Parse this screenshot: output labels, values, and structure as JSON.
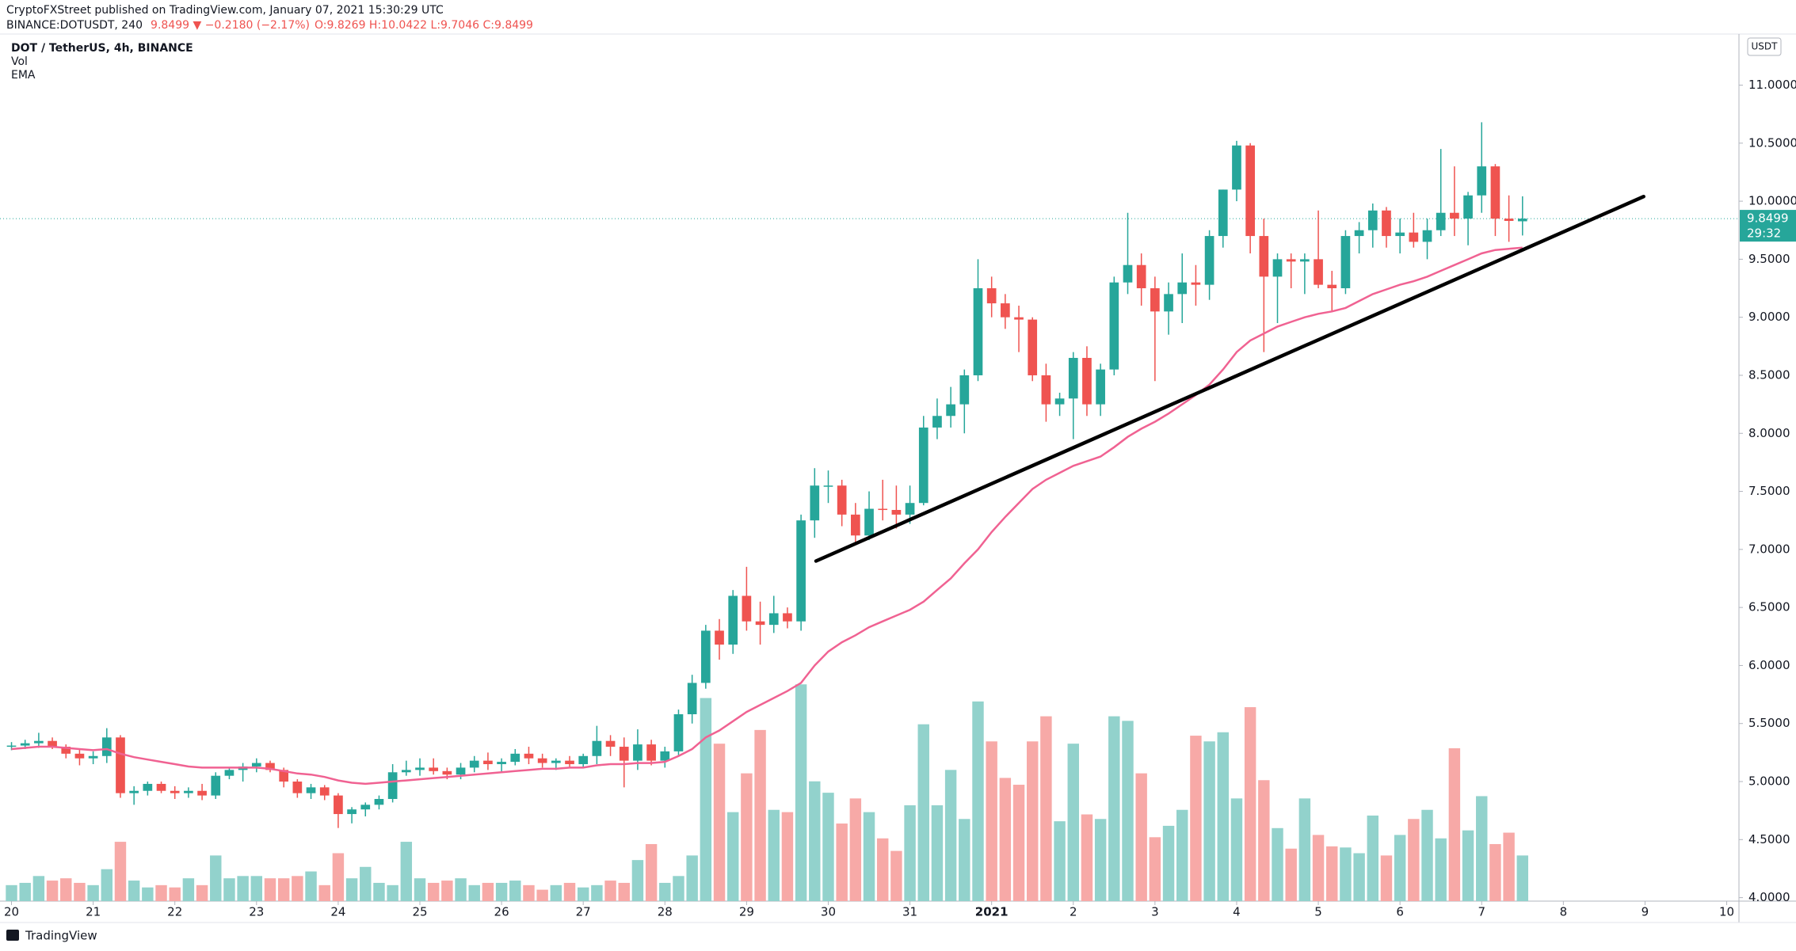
{
  "header": {
    "published": "CryptoFXStreet published on TradingView.com, January 07, 2021 15:30:29 UTC",
    "symbol": "BINANCE:DOTUSDT, 240",
    "change": "9.8499 ▼ −0.2180 (−2.17%)",
    "ohlc": "O:9.8269 H:10.0422 L:9.7046 C:9.8499"
  },
  "footer": {
    "brand": "TradingView"
  },
  "chart_data": {
    "type": "candlestick",
    "title": "DOT / TetherUS, 4h, BINANCE",
    "indicators": [
      "Vol",
      "EMA"
    ],
    "currency": "USDT",
    "countdown": "29:32",
    "up_color": "#26a69a",
    "down_color": "#ef5350",
    "volume_up_color": "#92d2cc",
    "volume_down_color": "#f7a9a7",
    "ema_color": "#f06292",
    "trendline_color": "#000000",
    "xlim": [
      -0.845,
      126.9
    ],
    "ylim": [
      3.97,
      11.44
    ],
    "grid": false,
    "xticks": [
      {
        "value": 0,
        "label": "20"
      },
      {
        "value": 6,
        "label": "21"
      },
      {
        "value": 12,
        "label": "22"
      },
      {
        "value": 18,
        "label": "23"
      },
      {
        "value": 24,
        "label": "24"
      },
      {
        "value": 30,
        "label": "25"
      },
      {
        "value": 36,
        "label": "26"
      },
      {
        "value": 42,
        "label": "27"
      },
      {
        "value": 48,
        "label": "28"
      },
      {
        "value": 54,
        "label": "29"
      },
      {
        "value": 60,
        "label": "30"
      },
      {
        "value": 66,
        "label": "31"
      },
      {
        "value": 72,
        "label": "2021"
      },
      {
        "value": 78,
        "label": "2"
      },
      {
        "value": 84,
        "label": "3"
      },
      {
        "value": 90,
        "label": "4"
      },
      {
        "value": 96,
        "label": "5"
      },
      {
        "value": 102,
        "label": "6"
      },
      {
        "value": 108,
        "label": "7"
      },
      {
        "value": 114,
        "label": "8"
      },
      {
        "value": 120,
        "label": "9"
      },
      {
        "value": 126,
        "label": "10"
      }
    ],
    "yticks": [
      {
        "value": 4,
        "label": "4.0000"
      },
      {
        "value": 4.5,
        "label": "4.5000"
      },
      {
        "value": 5,
        "label": "5.0000"
      },
      {
        "value": 5.5,
        "label": "5.5000"
      },
      {
        "value": 6,
        "label": "6.0000"
      },
      {
        "value": 6.5,
        "label": "6.5000"
      },
      {
        "value": 7,
        "label": "7.0000"
      },
      {
        "value": 7.5,
        "label": "7.5000"
      },
      {
        "value": 8,
        "label": "8.0000"
      },
      {
        "value": 8.5,
        "label": "8.5000"
      },
      {
        "value": 9,
        "label": "9.0000"
      },
      {
        "value": 9.5,
        "label": "9.5000"
      },
      {
        "value": 10,
        "label": "10.0000"
      },
      {
        "value": 10.5,
        "label": "10.5000"
      },
      {
        "value": 11,
        "label": "11.0000"
      }
    ],
    "candles": [
      [
        5.3,
        5.34,
        5.27,
        5.31
      ],
      [
        5.31,
        5.36,
        5.28,
        5.33
      ],
      [
        5.33,
        5.42,
        5.29,
        5.35
      ],
      [
        5.35,
        5.38,
        5.28,
        5.3
      ],
      [
        5.3,
        5.32,
        5.2,
        5.24
      ],
      [
        5.24,
        5.28,
        5.14,
        5.2
      ],
      [
        5.2,
        5.26,
        5.15,
        5.22
      ],
      [
        5.22,
        5.46,
        5.16,
        5.38
      ],
      [
        5.38,
        5.4,
        4.86,
        4.9
      ],
      [
        4.9,
        4.96,
        4.8,
        4.92
      ],
      [
        4.92,
        5.0,
        4.88,
        4.98
      ],
      [
        4.98,
        5.0,
        4.9,
        4.92
      ],
      [
        4.92,
        4.96,
        4.85,
        4.9
      ],
      [
        4.9,
        4.95,
        4.86,
        4.92
      ],
      [
        4.92,
        4.98,
        4.84,
        4.88
      ],
      [
        4.88,
        5.08,
        4.85,
        5.05
      ],
      [
        5.05,
        5.12,
        5.02,
        5.1
      ],
      [
        5.1,
        5.16,
        5.0,
        5.13
      ],
      [
        5.13,
        5.2,
        5.08,
        5.16
      ],
      [
        5.16,
        5.18,
        5.08,
        5.1
      ],
      [
        5.1,
        5.12,
        4.95,
        5.0
      ],
      [
        5.0,
        5.02,
        4.86,
        4.9
      ],
      [
        4.9,
        4.98,
        4.85,
        4.95
      ],
      [
        4.95,
        4.97,
        4.84,
        4.88
      ],
      [
        4.88,
        4.9,
        4.6,
        4.72
      ],
      [
        4.72,
        4.78,
        4.64,
        4.76
      ],
      [
        4.76,
        4.82,
        4.7,
        4.8
      ],
      [
        4.8,
        4.88,
        4.76,
        4.85
      ],
      [
        4.85,
        5.15,
        4.82,
        5.08
      ],
      [
        5.08,
        5.18,
        5.05,
        5.1
      ],
      [
        5.1,
        5.2,
        5.05,
        5.12
      ],
      [
        5.12,
        5.2,
        5.06,
        5.09
      ],
      [
        5.09,
        5.12,
        5.02,
        5.06
      ],
      [
        5.06,
        5.16,
        5.02,
        5.12
      ],
      [
        5.12,
        5.22,
        5.08,
        5.18
      ],
      [
        5.18,
        5.25,
        5.1,
        5.15
      ],
      [
        5.15,
        5.2,
        5.08,
        5.17
      ],
      [
        5.17,
        5.28,
        5.14,
        5.24
      ],
      [
        5.24,
        5.3,
        5.15,
        5.2
      ],
      [
        5.2,
        5.24,
        5.12,
        5.16
      ],
      [
        5.16,
        5.2,
        5.1,
        5.18
      ],
      [
        5.18,
        5.22,
        5.12,
        5.15
      ],
      [
        5.15,
        5.24,
        5.12,
        5.22
      ],
      [
        5.22,
        5.48,
        5.15,
        5.35
      ],
      [
        5.35,
        5.4,
        5.22,
        5.3
      ],
      [
        5.3,
        5.38,
        4.95,
        5.18
      ],
      [
        5.18,
        5.45,
        5.1,
        5.32
      ],
      [
        5.32,
        5.36,
        5.14,
        5.18
      ],
      [
        5.18,
        5.3,
        5.12,
        5.26
      ],
      [
        5.26,
        5.62,
        5.22,
        5.58
      ],
      [
        5.58,
        5.92,
        5.5,
        5.85
      ],
      [
        5.85,
        6.35,
        5.8,
        6.3
      ],
      [
        6.3,
        6.4,
        6.05,
        6.18
      ],
      [
        6.18,
        6.65,
        6.1,
        6.6
      ],
      [
        6.6,
        6.85,
        6.3,
        6.38
      ],
      [
        6.38,
        6.55,
        6.18,
        6.35
      ],
      [
        6.35,
        6.6,
        6.28,
        6.45
      ],
      [
        6.45,
        6.5,
        6.32,
        6.38
      ],
      [
        6.38,
        7.3,
        6.3,
        7.25
      ],
      [
        7.25,
        7.7,
        7.1,
        7.55
      ],
      [
        7.55,
        7.68,
        7.4,
        7.55
      ],
      [
        7.55,
        7.6,
        7.2,
        7.3
      ],
      [
        7.3,
        7.4,
        7.05,
        7.12
      ],
      [
        7.12,
        7.5,
        7.08,
        7.35
      ],
      [
        7.35,
        7.6,
        7.25,
        7.34
      ],
      [
        7.34,
        7.55,
        7.18,
        7.3
      ],
      [
        7.3,
        7.55,
        7.22,
        7.4
      ],
      [
        7.4,
        8.15,
        7.38,
        8.05
      ],
      [
        8.05,
        8.3,
        7.95,
        8.15
      ],
      [
        8.15,
        8.4,
        8.05,
        8.25
      ],
      [
        8.25,
        8.55,
        8.0,
        8.5
      ],
      [
        8.5,
        9.5,
        8.45,
        9.25
      ],
      [
        9.25,
        9.35,
        9.0,
        9.12
      ],
      [
        9.12,
        9.2,
        8.9,
        9.0
      ],
      [
        9.0,
        9.1,
        8.7,
        8.98
      ],
      [
        8.98,
        9.0,
        8.45,
        8.5
      ],
      [
        8.5,
        8.6,
        8.1,
        8.25
      ],
      [
        8.25,
        8.35,
        8.15,
        8.3
      ],
      [
        8.3,
        8.7,
        7.95,
        8.65
      ],
      [
        8.65,
        8.75,
        8.15,
        8.25
      ],
      [
        8.25,
        8.6,
        8.15,
        8.55
      ],
      [
        8.55,
        9.35,
        8.5,
        9.3
      ],
      [
        9.3,
        9.9,
        9.2,
        9.45
      ],
      [
        9.45,
        9.55,
        9.1,
        9.25
      ],
      [
        9.25,
        9.35,
        8.45,
        9.05
      ],
      [
        9.05,
        9.3,
        8.85,
        9.2
      ],
      [
        9.2,
        9.55,
        8.95,
        9.3
      ],
      [
        9.3,
        9.45,
        9.1,
        9.28
      ],
      [
        9.28,
        9.75,
        9.15,
        9.7
      ],
      [
        9.7,
        10.1,
        9.6,
        10.1
      ],
      [
        10.1,
        10.52,
        10.0,
        10.48
      ],
      [
        10.48,
        10.5,
        9.55,
        9.7
      ],
      [
        9.7,
        9.85,
        8.7,
        9.35
      ],
      [
        9.35,
        9.55,
        8.95,
        9.5
      ],
      [
        9.5,
        9.55,
        9.25,
        9.48
      ],
      [
        9.48,
        9.55,
        9.2,
        9.5
      ],
      [
        9.5,
        9.92,
        9.25,
        9.28
      ],
      [
        9.28,
        9.4,
        9.05,
        9.25
      ],
      [
        9.25,
        9.75,
        9.2,
        9.7
      ],
      [
        9.7,
        9.82,
        9.55,
        9.75
      ],
      [
        9.75,
        9.98,
        9.6,
        9.92
      ],
      [
        9.92,
        9.95,
        9.6,
        9.7
      ],
      [
        9.7,
        9.85,
        9.55,
        9.73
      ],
      [
        9.73,
        9.9,
        9.6,
        9.65
      ],
      [
        9.65,
        9.85,
        9.5,
        9.75
      ],
      [
        9.75,
        10.45,
        9.7,
        9.9
      ],
      [
        9.9,
        10.3,
        9.7,
        9.85
      ],
      [
        9.85,
        10.08,
        9.62,
        10.05
      ],
      [
        10.05,
        10.68,
        9.9,
        10.3
      ],
      [
        10.3,
        10.32,
        9.7,
        9.85
      ],
      [
        9.85,
        10.05,
        9.65,
        9.83
      ],
      [
        9.8269,
        10.0422,
        9.7046,
        9.8499
      ]
    ],
    "volume": [
      14,
      16,
      22,
      18,
      20,
      16,
      14,
      28,
      52,
      18,
      12,
      14,
      12,
      20,
      14,
      40,
      20,
      22,
      22,
      20,
      20,
      22,
      26,
      14,
      42,
      20,
      30,
      16,
      14,
      52,
      20,
      16,
      18,
      20,
      14,
      16,
      16,
      18,
      14,
      10,
      14,
      16,
      12,
      14,
      18,
      16,
      36,
      50,
      16,
      22,
      40,
      178,
      138,
      78,
      112,
      150,
      80,
      78,
      190,
      105,
      95,
      68,
      90,
      78,
      55,
      44,
      84,
      155,
      84,
      115,
      72,
      175,
      140,
      108,
      102,
      140,
      162,
      70,
      138,
      76,
      72,
      162,
      158,
      112,
      56,
      66,
      80,
      145,
      140,
      148,
      90,
      170,
      106,
      64,
      46,
      90,
      58,
      48,
      47,
      42,
      75,
      40,
      58,
      72,
      80,
      55,
      134,
      62,
      92,
      50,
      60,
      40
    ],
    "ema": [
      5.28,
      5.29,
      5.3,
      5.3,
      5.29,
      5.28,
      5.27,
      5.28,
      5.24,
      5.21,
      5.19,
      5.17,
      5.15,
      5.13,
      5.12,
      5.12,
      5.12,
      5.12,
      5.12,
      5.11,
      5.09,
      5.07,
      5.06,
      5.04,
      5.01,
      4.99,
      4.98,
      4.99,
      5.0,
      5.01,
      5.02,
      5.03,
      5.04,
      5.05,
      5.06,
      5.07,
      5.08,
      5.09,
      5.1,
      5.11,
      5.11,
      5.12,
      5.12,
      5.14,
      5.15,
      5.15,
      5.16,
      5.16,
      5.17,
      5.22,
      5.28,
      5.38,
      5.44,
      5.52,
      5.6,
      5.66,
      5.72,
      5.78,
      5.85,
      6.0,
      6.12,
      6.2,
      6.26,
      6.33,
      6.38,
      6.43,
      6.48,
      6.55,
      6.65,
      6.75,
      6.88,
      7.0,
      7.15,
      7.28,
      7.4,
      7.52,
      7.6,
      7.66,
      7.72,
      7.76,
      7.8,
      7.88,
      7.97,
      8.04,
      8.1,
      8.17,
      8.25,
      8.33,
      8.42,
      8.55,
      8.7,
      8.8,
      8.86,
      8.92,
      8.96,
      9.0,
      9.03,
      9.05,
      9.08,
      9.14,
      9.2,
      9.24,
      9.28,
      9.31,
      9.35,
      9.4,
      9.45,
      9.5,
      9.55,
      9.58,
      9.59,
      9.6
    ],
    "trendline": {
      "x": [
        59.1,
        119.9
      ],
      "y": [
        6.9,
        10.04
      ]
    }
  }
}
